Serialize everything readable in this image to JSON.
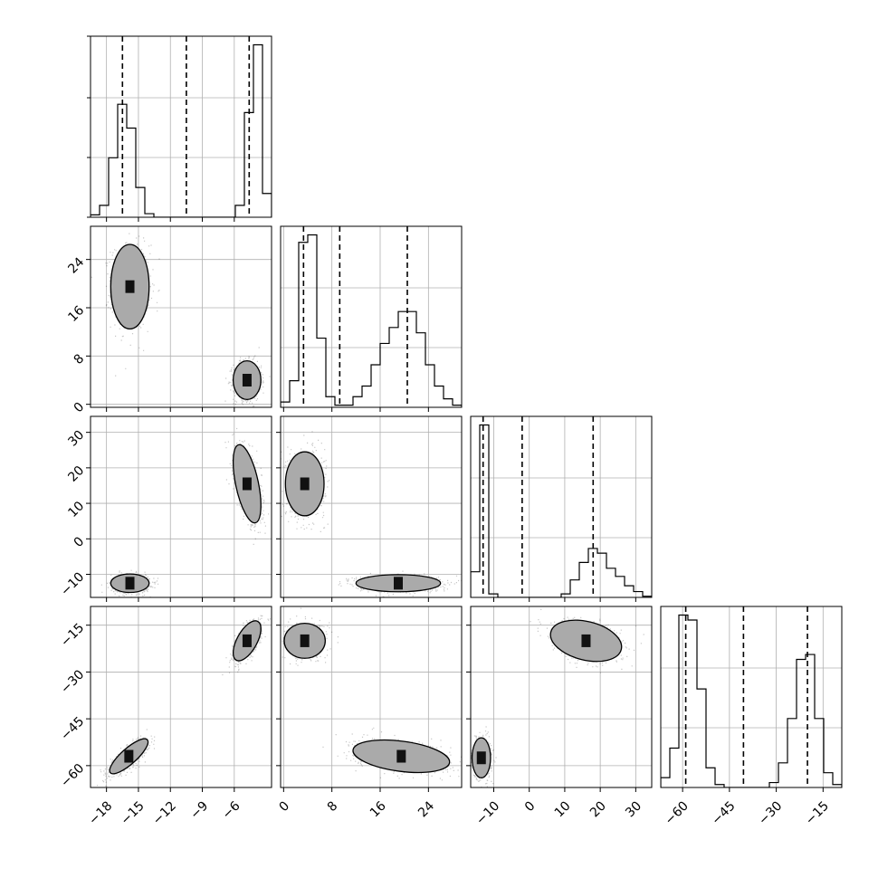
{
  "chart_data": {
    "type": "corner",
    "parameters": [
      {
        "range": [
          -19.5,
          -2.5
        ],
        "ticks": [
          -18,
          -15,
          -12,
          -9,
          -6
        ],
        "tick_labels": [
          "−18",
          "−15",
          "−12",
          "−9",
          "−6"
        ],
        "quantiles": [
          -16.5,
          -10.5,
          -4.6
        ]
      },
      {
        "range": [
          -0.5,
          29.5
        ],
        "ticks": [
          0,
          8,
          16,
          24
        ],
        "tick_labels": [
          "0",
          "8",
          "16",
          "24"
        ],
        "quantiles": [
          3.3,
          9.3,
          20.5
        ]
      },
      {
        "range": [
          -16.5,
          34.5
        ],
        "ticks": [
          -10,
          0,
          10,
          20,
          30
        ],
        "tick_labels": [
          "−10",
          "0",
          "10",
          "20",
          "30"
        ],
        "quantiles": [
          -13.0,
          -2.0,
          18.0
        ]
      },
      {
        "range": [
          -67,
          -9
        ],
        "ticks": [
          -60,
          -45,
          -30,
          -15
        ],
        "tick_labels": [
          "−60",
          "−45",
          "−30",
          "−15"
        ],
        "quantiles": [
          -59.0,
          -40.5,
          -20.0
        ]
      }
    ],
    "histograms": [
      {
        "param": 0,
        "bins": [
          -19.5,
          -18.65,
          -17.8,
          -16.95,
          -16.1,
          -15.25,
          -14.4,
          -13.55,
          -12.7,
          -11.85,
          -11.0,
          -10.15,
          -9.3,
          -8.45,
          -7.6,
          -6.75,
          -5.9,
          -5.05,
          -4.2,
          -3.35,
          -2.5
        ],
        "counts": [
          2,
          10,
          50,
          95,
          75,
          25,
          3,
          0,
          0,
          0,
          0,
          0,
          0,
          0,
          0,
          0,
          10,
          88,
          145,
          20
        ]
      },
      {
        "param": 1,
        "bins": [
          -0.5,
          1.0,
          2.5,
          4.0,
          5.5,
          7.0,
          8.5,
          10.0,
          11.5,
          13.0,
          14.5,
          16.0,
          17.5,
          19.0,
          20.5,
          22.0,
          23.5,
          25.0,
          26.5,
          28.0,
          29.5
        ],
        "counts": [
          5,
          25,
          155,
          162,
          65,
          10,
          2,
          2,
          10,
          20,
          40,
          60,
          75,
          90,
          90,
          70,
          40,
          20,
          8,
          2
        ]
      },
      {
        "param": 2,
        "bins": [
          -16.5,
          -13.95,
          -11.4,
          -8.85,
          -6.3,
          -3.75,
          -1.2,
          1.35,
          3.9,
          6.45,
          9.0,
          11.55,
          14.1,
          16.65,
          19.2,
          21.75,
          24.3,
          26.85,
          29.4,
          31.95,
          34.5
        ],
        "counts": [
          22,
          148,
          3,
          0,
          0,
          0,
          0,
          0,
          0,
          0,
          3,
          15,
          30,
          42,
          38,
          25,
          18,
          10,
          5,
          1
        ]
      },
      {
        "param": 3,
        "bins": [
          -67,
          -64.1,
          -61.2,
          -58.3,
          -55.4,
          -52.5,
          -49.6,
          -46.7,
          -43.8,
          -40.9,
          -38.0,
          -35.1,
          -32.2,
          -29.3,
          -26.4,
          -23.5,
          -20.6,
          -17.7,
          -14.8,
          -11.9,
          -9.0
        ],
        "counts": [
          10,
          40,
          175,
          170,
          100,
          20,
          3,
          0,
          0,
          0,
          0,
          0,
          5,
          25,
          70,
          130,
          135,
          70,
          15,
          3
        ]
      }
    ],
    "contours_2d": [
      {
        "x": 0,
        "y": 1,
        "modes": [
          {
            "mean": [
              -15.8,
              19.5
            ],
            "sd": [
              0.9,
              3.5
            ],
            "weight": 0.5,
            "rho": 0
          },
          {
            "mean": [
              -4.8,
              4.0
            ],
            "sd": [
              0.65,
              1.6
            ],
            "weight": 0.5,
            "rho": 0
          }
        ]
      },
      {
        "x": 0,
        "y": 2,
        "modes": [
          {
            "mean": [
              -15.8,
              -12.5
            ],
            "sd": [
              0.9,
              1.3
            ],
            "weight": 0.5,
            "rho": 0
          },
          {
            "mean": [
              -4.8,
              15.5
            ],
            "sd": [
              0.65,
              5.5
            ],
            "weight": 0.5,
            "rho": -0.55
          }
        ]
      },
      {
        "x": 0,
        "y": 3,
        "modes": [
          {
            "mean": [
              -15.9,
              -57.0
            ],
            "sd": [
              0.9,
              2.8
            ],
            "weight": 0.5,
            "rho": 0.82
          },
          {
            "mean": [
              -4.8,
              -20.0
            ],
            "sd": [
              0.65,
              3.2
            ],
            "weight": 0.5,
            "rho": 0.6
          }
        ]
      },
      {
        "x": 1,
        "y": 2,
        "modes": [
          {
            "mean": [
              3.5,
              15.5
            ],
            "sd": [
              1.6,
              4.5
            ],
            "weight": 0.5,
            "rho": 0
          },
          {
            "mean": [
              19.0,
              -12.5
            ],
            "sd": [
              3.5,
              1.2
            ],
            "weight": 0.5,
            "rho": 0
          }
        ]
      },
      {
        "x": 1,
        "y": 3,
        "modes": [
          {
            "mean": [
              3.5,
              -20.0
            ],
            "sd": [
              1.7,
              2.8
            ],
            "weight": 0.5,
            "rho": 0
          },
          {
            "mean": [
              19.5,
              -57.0
            ],
            "sd": [
              4.0,
              2.6
            ],
            "weight": 0.5,
            "rho": -0.35
          }
        ]
      },
      {
        "x": 2,
        "y": 3,
        "modes": [
          {
            "mean": [
              -13.5,
              -57.5
            ],
            "sd": [
              1.3,
              3.2
            ],
            "weight": 0.5,
            "rho": 0
          },
          {
            "mean": [
              16.0,
              -20.0
            ],
            "sd": [
              5.0,
              3.3
            ],
            "weight": 0.5,
            "rho": -0.3
          }
        ]
      }
    ],
    "grid": true,
    "legend": "none"
  }
}
